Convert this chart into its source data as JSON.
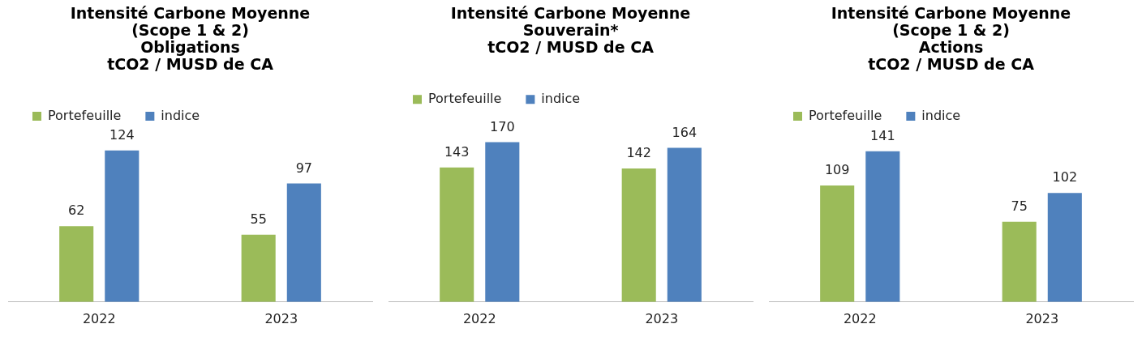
{
  "chart_data": [
    {
      "type": "bar",
      "title": "Intensité Carbone Moyenne\n(Scope 1 & 2)\nObligations\ntCO2 / MUSD de CA",
      "categories": [
        "2022",
        "2023"
      ],
      "series": [
        {
          "name": "Portefeuille",
          "color": "#9bbb59",
          "values": [
            62,
            55
          ]
        },
        {
          "name": "indice",
          "color": "#4f81bd",
          "values": [
            124,
            97
          ]
        }
      ],
      "data_labels": true,
      "legend": "top",
      "tick_labels": "x",
      "grid": false
    },
    {
      "type": "bar",
      "title": "Intensité Carbone Moyenne\nSouverain*\ntCO2 / MUSD de CA",
      "categories": [
        "2022",
        "2023"
      ],
      "series": [
        {
          "name": "Portefeuille",
          "color": "#9bbb59",
          "values": [
            143,
            142
          ]
        },
        {
          "name": "indice",
          "color": "#4f81bd",
          "values": [
            170,
            164
          ]
        }
      ],
      "data_labels": true,
      "legend": "top",
      "tick_labels": "x",
      "grid": false
    },
    {
      "type": "bar",
      "title": "Intensité Carbone Moyenne\n(Scope 1 & 2)\nActions\ntCO2 / MUSD de CA",
      "categories": [
        "2022",
        "2023"
      ],
      "series": [
        {
          "name": "Portefeuille",
          "color": "#9bbb59",
          "values": [
            109,
            75
          ]
        },
        {
          "name": "indice",
          "color": "#4f81bd",
          "values": [
            141,
            102
          ]
        }
      ],
      "data_labels": true,
      "legend": "top",
      "tick_labels": "x",
      "grid": false
    }
  ]
}
